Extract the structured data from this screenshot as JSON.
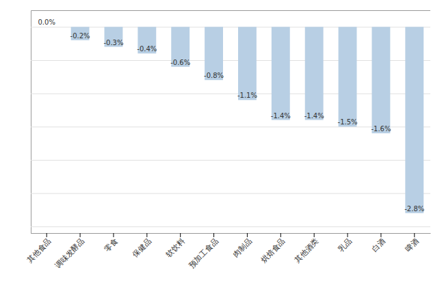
{
  "chart_data": {
    "type": "bar",
    "categories": [
      "其他食品",
      "调味发酵品",
      "零食",
      "保健品",
      "软饮料",
      "预加工食品",
      "肉制品",
      "烘焙食品",
      "其他酒类",
      "乳品",
      "白酒",
      "啤酒"
    ],
    "values": [
      0.0,
      -0.2,
      -0.3,
      -0.4,
      -0.6,
      -0.8,
      -1.1,
      -1.4,
      -1.4,
      -1.5,
      -1.6,
      -2.8
    ],
    "value_labels": [
      "0.0%",
      "-0.2%",
      "-0.3%",
      "-0.4%",
      "-0.6%",
      "-0.8%",
      "-1.1%",
      "-1.4%",
      "-1.4%",
      "-1.5%",
      "-1.6%",
      "-2.8%"
    ],
    "color": "#b8cfe4",
    "ylim": [
      -3.1,
      0.25
    ],
    "yticks": [
      -3.0,
      -2.5,
      -2.0,
      -1.5,
      -1.0,
      -0.5,
      0
    ],
    "grid": true,
    "data_labels": true,
    "tick_labels": "x"
  }
}
